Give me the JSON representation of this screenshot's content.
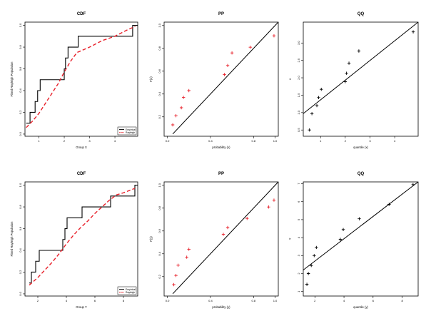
{
  "colors": {
    "empirical": "#000000",
    "model": "#e8202a",
    "points_pp": "#e8202a",
    "points_qq": "#000000"
  },
  "chart_data": [
    {
      "type": "line",
      "title": "CDF",
      "xlabel": "Group X",
      "ylabel": "Fitted Rayleigh Population",
      "xlim": [
        0.45,
        4.9
      ],
      "ylim": [
        -0.02,
        1.03
      ],
      "xticks": [
        {
          "v": 1,
          "label": "1"
        },
        {
          "v": 2,
          "label": "2"
        },
        {
          "v": 3,
          "label": "3"
        },
        {
          "v": 4,
          "label": "4"
        }
      ],
      "yticks": [
        {
          "v": 0,
          "label": "0.0"
        },
        {
          "v": 0.2,
          "label": "0.2"
        },
        {
          "v": 0.4,
          "label": "0.4"
        },
        {
          "v": 0.6,
          "label": "0.6"
        },
        {
          "v": 0.8,
          "label": "0.8"
        },
        {
          "v": 1,
          "label": "1.0"
        }
      ],
      "empirical_x": [
        0.5,
        0.65,
        0.85,
        0.95,
        1.05,
        2.0,
        2.05,
        2.15,
        2.55,
        4.7
      ],
      "rayleigh_x": [
        0.5,
        0.75,
        1.0,
        1.25,
        1.5,
        1.75,
        2.0,
        2.25,
        2.5,
        3.0,
        3.5,
        4.0,
        4.5,
        4.8
      ],
      "rayleigh_y": [
        0.06,
        0.12,
        0.19,
        0.28,
        0.37,
        0.46,
        0.57,
        0.67,
        0.75,
        0.8,
        0.86,
        0.9,
        0.96,
        0.99
      ],
      "legend": {
        "position": "bottom-right",
        "entries": [
          {
            "name": "Empirical",
            "style": "solid"
          },
          {
            "name": "Rayleigh",
            "style": "dashed"
          }
        ]
      }
    },
    {
      "type": "scatter",
      "title": "PP",
      "xlabel": "probability (x)",
      "ylabel": "F(x)",
      "xlim": [
        -0.03,
        1.03
      ],
      "ylim": [
        0.03,
        1.03
      ],
      "xticks": [
        {
          "v": 0,
          "label": "0.0"
        },
        {
          "v": 0.4,
          "label": "0.4"
        },
        {
          "v": 0.8,
          "label": "0.8"
        },
        {
          "v": 1,
          "label": "1.0"
        }
      ],
      "yticks": [
        {
          "v": 0.2,
          "label": "0.2"
        },
        {
          "v": 0.4,
          "label": "0.4"
        },
        {
          "v": 0.6,
          "label": "0.6"
        },
        {
          "v": 0.8,
          "label": "0.8"
        },
        {
          "v": 1,
          "label": "1.0"
        }
      ],
      "x": [
        0.05,
        0.08,
        0.13,
        0.15,
        0.2,
        0.53,
        0.56,
        0.6,
        0.77,
        0.99
      ],
      "y": [
        0.13,
        0.21,
        0.28,
        0.37,
        0.43,
        0.57,
        0.65,
        0.76,
        0.81,
        0.91
      ],
      "reference_line": [
        [
          0.05,
          0.05
        ],
        [
          1.03,
          1.03
        ]
      ]
    },
    {
      "type": "scatter",
      "title": "QQ",
      "xlabel": "quantile (x)",
      "ylabel": "x",
      "xlim": [
        0.3,
        4.95
      ],
      "ylim": [
        0.32,
        3.6
      ],
      "xticks": [
        {
          "v": 1,
          "label": "1"
        },
        {
          "v": 2,
          "label": "2"
        },
        {
          "v": 3,
          "label": "3"
        },
        {
          "v": 4,
          "label": "4"
        }
      ],
      "yticks": [
        {
          "v": 0.5,
          "label": "0.5"
        },
        {
          "v": 1,
          "label": "1.0"
        },
        {
          "v": 1.5,
          "label": "1.5"
        },
        {
          "v": 2,
          "label": "2.0"
        },
        {
          "v": 2.5,
          "label": "2.5"
        },
        {
          "v": 3,
          "label": "3.0"
        }
      ],
      "x": [
        0.55,
        0.65,
        0.85,
        0.92,
        1.03,
        2.0,
        2.05,
        2.15,
        2.55,
        4.75
      ],
      "y": [
        0.5,
        0.97,
        1.2,
        1.43,
        1.67,
        1.89,
        2.13,
        2.42,
        2.77,
        3.32
      ],
      "reference_line": [
        [
          0.3,
          0.97
        ],
        [
          4.95,
          3.6
        ]
      ]
    },
    {
      "type": "line",
      "title": "CDF",
      "xlabel": "Group Y",
      "ylabel": "Fitted Rayleigh Population",
      "xlim": [
        1.1,
        9.0
      ],
      "ylim": [
        -0.02,
        1.03
      ],
      "xticks": [
        {
          "v": 2,
          "label": "2"
        },
        {
          "v": 4,
          "label": "4"
        },
        {
          "v": 6,
          "label": "6"
        },
        {
          "v": 8,
          "label": "8"
        }
      ],
      "yticks": [
        {
          "v": 0,
          "label": "0.0"
        },
        {
          "v": 0.2,
          "label": "0.2"
        },
        {
          "v": 0.4,
          "label": "0.4"
        },
        {
          "v": 0.6,
          "label": "0.6"
        },
        {
          "v": 0.8,
          "label": "0.8"
        },
        {
          "v": 1,
          "label": "1.0"
        }
      ],
      "empirical_x": [
        1.4,
        1.55,
        1.85,
        2.1,
        3.75,
        3.9,
        4.05,
        5.1,
        7.1,
        8.8
      ],
      "rayleigh_x": [
        1.4,
        2.0,
        2.5,
        3.0,
        3.5,
        4.0,
        4.5,
        5.0,
        5.5,
        6.0,
        6.5,
        7.0,
        7.5,
        8.0,
        8.8
      ],
      "rayleigh_y": [
        0.08,
        0.15,
        0.22,
        0.29,
        0.37,
        0.46,
        0.54,
        0.61,
        0.67,
        0.74,
        0.8,
        0.86,
        0.91,
        0.93,
        0.97
      ],
      "legend": {
        "position": "bottom-right",
        "entries": [
          {
            "name": "Empirical",
            "style": "solid"
          },
          {
            "name": "Rayleigh",
            "style": "dashed"
          }
        ]
      }
    },
    {
      "type": "scatter",
      "title": "PP",
      "xlabel": "probability (y)",
      "ylabel": "F(y)",
      "xlim": [
        -0.03,
        1.03
      ],
      "ylim": [
        0.03,
        1.03
      ],
      "xticks": [
        {
          "v": 0,
          "label": "0.0"
        },
        {
          "v": 0.4,
          "label": "0.4"
        },
        {
          "v": 0.8,
          "label": "0.8"
        },
        {
          "v": 1,
          "label": "1.0"
        }
      ],
      "yticks": [
        {
          "v": 0.2,
          "label": "0.2"
        },
        {
          "v": 0.4,
          "label": "0.4"
        },
        {
          "v": 0.6,
          "label": "0.6"
        },
        {
          "v": 0.8,
          "label": "0.8"
        },
        {
          "v": 1,
          "label": "1.0"
        }
      ],
      "x": [
        0.06,
        0.08,
        0.1,
        0.18,
        0.2,
        0.52,
        0.56,
        0.74,
        0.94,
        0.99
      ],
      "y": [
        0.13,
        0.21,
        0.3,
        0.37,
        0.44,
        0.57,
        0.63,
        0.71,
        0.81,
        0.87
      ],
      "reference_line": [
        [
          0.05,
          0.05
        ],
        [
          1.03,
          1.03
        ]
      ]
    },
    {
      "type": "scatter",
      "title": "QQ",
      "xlabel": "quantile (y)",
      "ylabel": "Y",
      "xlim": [
        1.2,
        9.1
      ],
      "ylim": [
        0.75,
        7.1
      ],
      "xticks": [
        {
          "v": 2,
          "label": "2"
        },
        {
          "v": 4,
          "label": "4"
        },
        {
          "v": 6,
          "label": "6"
        },
        {
          "v": 8,
          "label": "8"
        }
      ],
      "yticks": [
        {
          "v": 1,
          "label": "1"
        },
        {
          "v": 2,
          "label": "2"
        },
        {
          "v": 3,
          "label": "3"
        },
        {
          "v": 4,
          "label": "4"
        },
        {
          "v": 5,
          "label": "5"
        },
        {
          "v": 6,
          "label": "6"
        },
        {
          "v": 7,
          "label": "7"
        }
      ],
      "x": [
        1.45,
        1.55,
        1.75,
        1.95,
        2.1,
        3.75,
        3.95,
        5.05,
        7.1,
        8.75
      ],
      "y": [
        1.4,
        2.0,
        2.45,
        3.0,
        3.45,
        3.9,
        4.45,
        5.05,
        5.85,
        6.95
      ],
      "reference_line": [
        [
          1.2,
          2.2
        ],
        [
          9.1,
          7.1
        ]
      ]
    }
  ]
}
